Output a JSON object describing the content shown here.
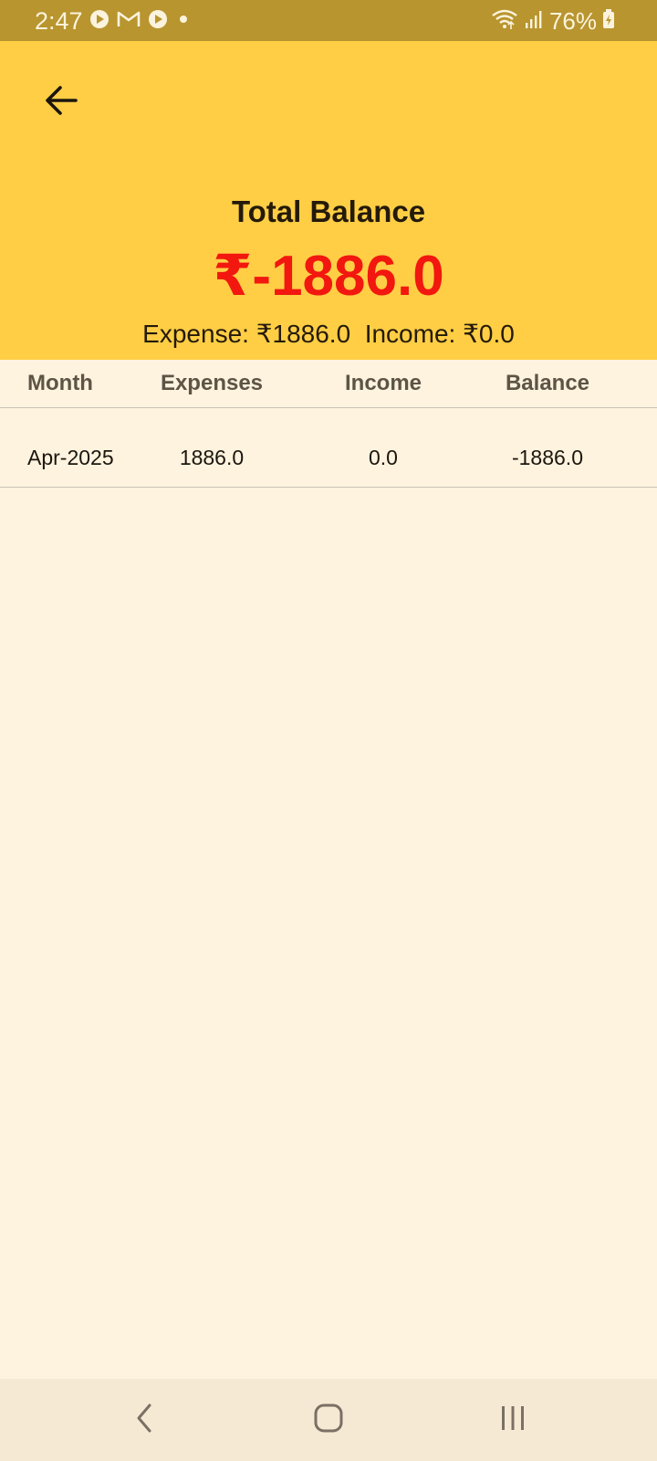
{
  "status_bar": {
    "time": "2:47",
    "battery": "76%",
    "icons_left": [
      "play-icon",
      "gmail-icon",
      "play-icon",
      "dot-icon"
    ],
    "icons_right": [
      "wifi-icon",
      "signal-icon",
      "battery-icon"
    ]
  },
  "header": {
    "back_icon": "arrow-left-icon",
    "title": "Total Balance",
    "total_balance": "₹-1886.0",
    "summary": "Expense: ₹1886.0  Income: ₹0.0",
    "colors": {
      "header_bg": "#FFCE45",
      "balance_negative": "#F2170F"
    }
  },
  "table": {
    "columns": [
      "Month",
      "Expenses",
      "Income",
      "Balance"
    ],
    "rows": [
      {
        "month": "Apr-2025",
        "expenses": "1886.0",
        "income": "0.0",
        "balance": "-1886.0"
      }
    ]
  },
  "nav_bar": {
    "buttons": [
      "back-icon",
      "home-icon",
      "recents-icon"
    ]
  }
}
